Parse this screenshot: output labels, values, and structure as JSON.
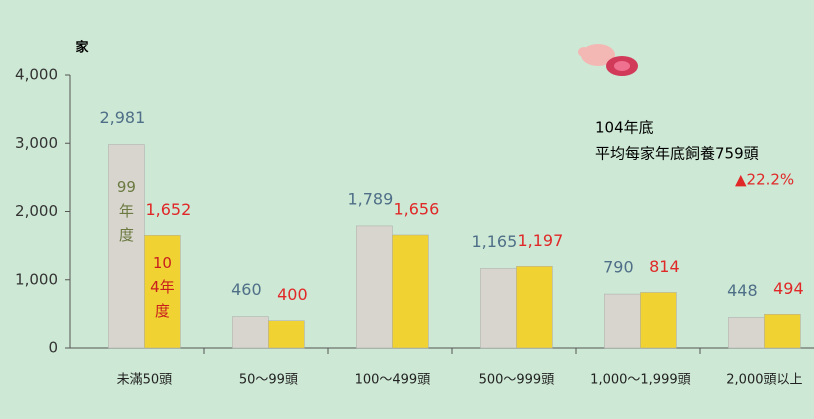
{
  "chart_data": {
    "type": "bar",
    "y_label": "家",
    "categories": [
      "未滿50頭",
      "50～99頭",
      "100～499頭",
      "500～999頭",
      "1,000～1,999頭",
      "2,000頭以上"
    ],
    "series": [
      {
        "name": "99年度",
        "color": "#d8d4ce",
        "label_color": "#4f6f88",
        "values": [
          2981,
          460,
          1789,
          1165,
          790,
          448
        ],
        "value_labels": [
          "2,981",
          "460",
          "1,789",
          "1,165",
          "790",
          "448"
        ]
      },
      {
        "name": "104年度",
        "color": "#f0d232",
        "label_color": "#e02828",
        "values": [
          1652,
          400,
          1656,
          1197,
          814,
          494
        ],
        "value_labels": [
          "1,652",
          "400",
          "1,656",
          "1,197",
          "814",
          "494"
        ]
      }
    ],
    "ylim": [
      0,
      4000
    ],
    "yticks": [
      0,
      {
        "value": 1000,
        "label": "1,000"
      },
      {
        "value": 2000,
        "label": "2,000"
      },
      {
        "value": 3000,
        "label": "3,000"
      },
      {
        "value": 4000,
        "label": "4,000"
      }
    ],
    "annotations": [
      "104年底",
      "平均每家年底飼養759頭",
      "▲22.2%"
    ]
  }
}
